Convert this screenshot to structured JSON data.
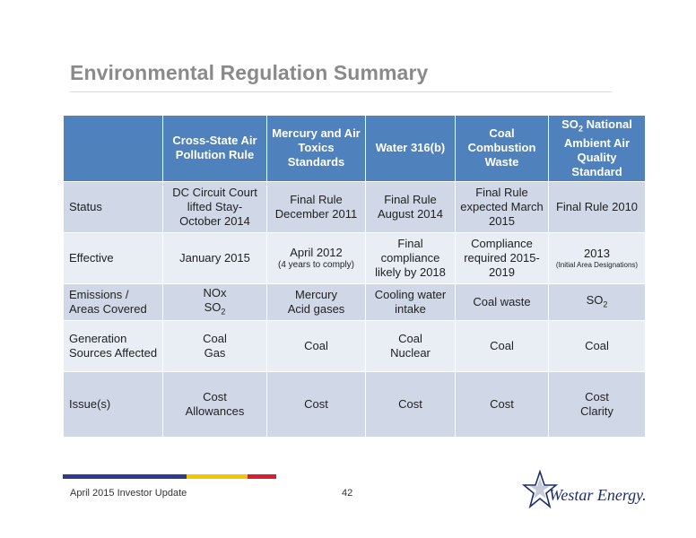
{
  "slide": {
    "title": "Environmental Regulation Summary",
    "footer": "April 2015 Investor Update",
    "page_number": "42",
    "logo_text": "Westar Energy."
  },
  "table": {
    "headers": [
      "",
      "Cross-State Air Pollution Rule",
      "Mercury and Air Toxics Standards",
      "Water 316(b)",
      "Coal Combustion Waste",
      "SO2 National Ambient Air Quality Standard"
    ],
    "so2_header": {
      "so": "SO",
      "sub": "2",
      "rest": " National Ambient Air Quality Standard"
    },
    "rows": {
      "status": {
        "label": "Status",
        "csapr": "DC Circuit Court lifted Stay- October 2014",
        "mats": "Final Rule December 2011",
        "water": "Final Rule August 2014",
        "ccw": "Final Rule expected March 2015",
        "so2": "Final Rule 2010"
      },
      "effective": {
        "label": "Effective",
        "csapr": "January 2015",
        "mats": "April 2012",
        "mats_note": "(4 years to comply)",
        "water": "Final compliance likely by 2018",
        "ccw": "Compliance required 2015-2019",
        "so2": "2013",
        "so2_note": "(Initial Area Designations)"
      },
      "emissions": {
        "label": "Emissions / Areas Covered",
        "csapr_1": "NOx",
        "csapr_2_main": "SO",
        "csapr_2_sub": "2",
        "mats_1": "Mercury",
        "mats_2": "Acid gases",
        "water": "Cooling water intake",
        "ccw": "Coal waste",
        "so2_main": "SO",
        "so2_sub": "2"
      },
      "generation": {
        "label": "Generation Sources Affected",
        "csapr_1": "Coal",
        "csapr_2": "Gas",
        "mats": "Coal",
        "water_1": "Coal",
        "water_2": "Nuclear",
        "ccw": "Coal",
        "so2": "Coal"
      },
      "issues": {
        "label": "Issue(s)",
        "csapr_1": "Cost",
        "csapr_2": "Allowances",
        "mats": "Cost",
        "water": "Cost",
        "ccw": "Cost",
        "so2_1": "Cost",
        "so2_2": "Clarity"
      }
    }
  },
  "colors": {
    "header_fill": "#4f81bd",
    "row_dark": "#d0d8e8",
    "row_light": "#e9edf4",
    "title": "#8a8a8a",
    "stripe_blue": "#2e3a8c",
    "stripe_yellow": "#f2c500",
    "stripe_red": "#d62030"
  }
}
